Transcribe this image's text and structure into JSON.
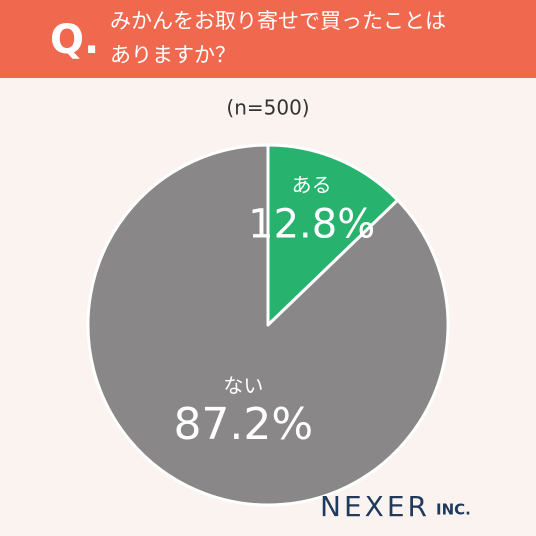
{
  "chart_data": {
    "type": "pie",
    "question_label": "Q.",
    "title": [
      "みかんをお取り寄せで買ったことは",
      "ありますか？"
    ],
    "subtitle": "(n=500)",
    "categories": [
      "ある",
      "ない"
    ],
    "values": [
      12.8,
      87.2
    ],
    "value_labels": [
      "12.8%",
      "87.2%"
    ],
    "colors": [
      "#27b36e",
      "#898787"
    ],
    "brand": "NEXER",
    "brand_suffix": "INC."
  }
}
